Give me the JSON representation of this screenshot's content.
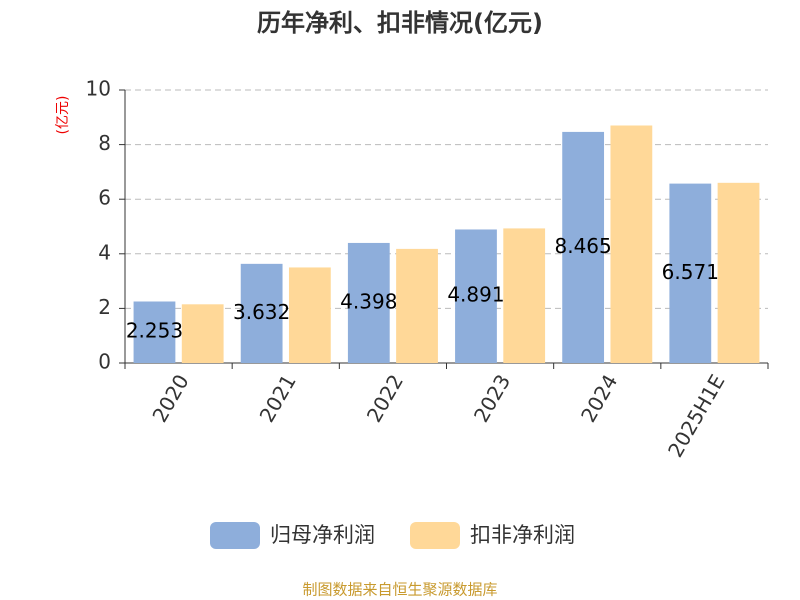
{
  "chart_data": {
    "type": "bar",
    "title": "历年净利、扣非情况(亿元)",
    "y_label": "(亿元)",
    "categories": [
      "2020",
      "2021",
      "2022",
      "2023",
      "2024",
      "2025H1E"
    ],
    "series": [
      {
        "name": "归母净利润",
        "color": "#8eaedb",
        "values": [
          2.253,
          3.632,
          4.398,
          4.891,
          8.465,
          6.571
        ],
        "show_labels": true
      },
      {
        "name": "扣非净利润",
        "color": "#ffd898",
        "values": [
          2.15,
          3.5,
          4.18,
          4.93,
          8.7,
          6.6
        ],
        "show_labels": false
      }
    ],
    "ylim": [
      0,
      10
    ],
    "yticks": [
      0,
      2,
      4,
      6,
      8,
      10
    ],
    "grid": true,
    "legend": "bottom",
    "source": "制图数据来自恒生聚源数据库"
  }
}
